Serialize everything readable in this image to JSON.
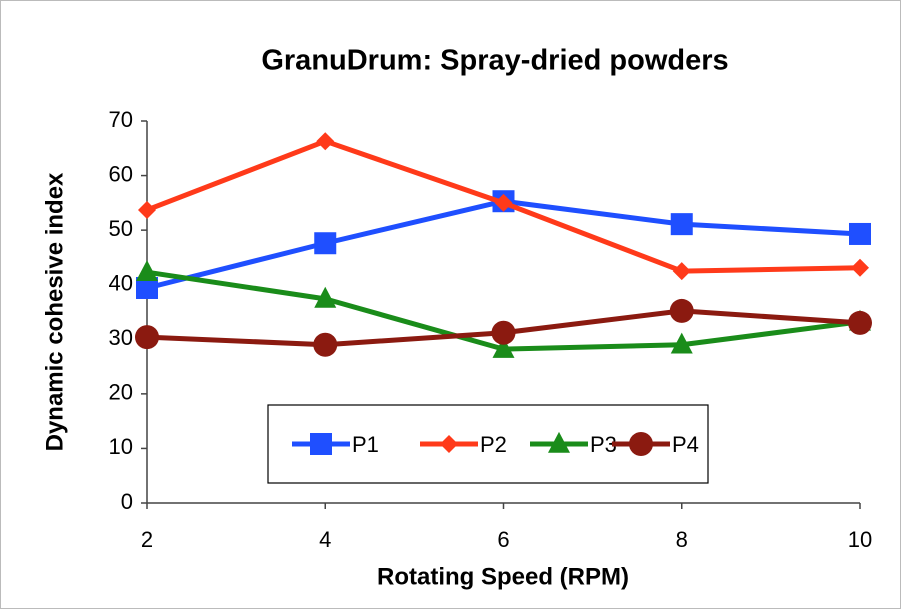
{
  "chart_data": {
    "type": "line",
    "title": "GranuDrum: Spray-dried powders",
    "xlabel": "Rotating Speed (RPM)",
    "ylabel": "Dynamic cohesive index",
    "x": [
      2,
      4,
      6,
      8,
      10
    ],
    "xlim": [
      2,
      10
    ],
    "xticks": [
      2,
      4,
      6,
      8,
      10
    ],
    "ylim": [
      0,
      70
    ],
    "yticks": [
      0,
      10,
      20,
      30,
      40,
      50,
      60,
      70
    ],
    "grid": false,
    "legend": "bottom",
    "series": [
      {
        "name": "P1",
        "color": "#1f4fff",
        "marker": "square",
        "values": [
          39.4,
          47.6,
          55.3,
          51.1,
          49.3
        ]
      },
      {
        "name": "P2",
        "color": "#ff3a1a",
        "marker": "diamond",
        "values": [
          53.7,
          66.3,
          55.0,
          42.5,
          43.1
        ]
      },
      {
        "name": "P3",
        "color": "#1a8c1a",
        "marker": "triangle",
        "values": [
          42.3,
          37.4,
          28.2,
          29.0,
          33.2
        ]
      },
      {
        "name": "P4",
        "color": "#8b1a10",
        "marker": "circle",
        "values": [
          30.4,
          29.0,
          31.2,
          35.2,
          33.0
        ]
      }
    ]
  }
}
